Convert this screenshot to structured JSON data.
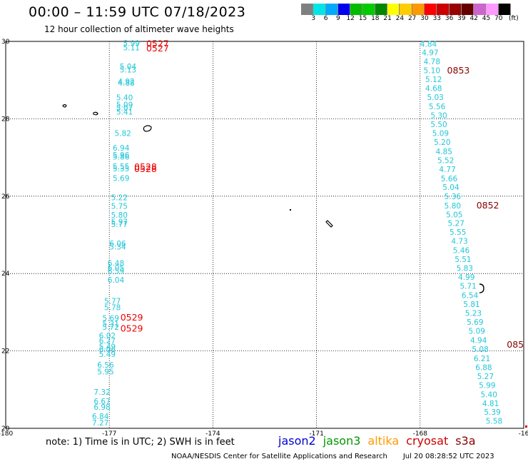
{
  "header": {
    "title": "00:00 – 11:59 UTC 07/18/2023",
    "subtitle": "12 hour collection of altimeter wave heights"
  },
  "colorbar": {
    "unit": "(ft)",
    "colors": [
      "#808080",
      "#00e6e6",
      "#00aaff",
      "#0000ee",
      "#00bb00",
      "#00cc00",
      "#008800",
      "#ffff00",
      "#ffcc00",
      "#ff9900",
      "#ff0000",
      "#cc0000",
      "#990000",
      "#660000",
      "#cc66cc",
      "#ff99ff",
      "#000000"
    ],
    "labels": [
      "3",
      "6",
      "9",
      "12",
      "15",
      "18",
      "21",
      "24",
      "27",
      "30",
      "33",
      "36",
      "39",
      "42",
      "45",
      "70"
    ]
  },
  "map": {
    "lon_range": [
      -180,
      -165
    ],
    "lat_range": [
      20,
      30
    ],
    "lon_ticks": [
      "-180",
      "-177",
      "-174",
      "-171",
      "-168",
      "-16"
    ],
    "lat_ticks": [
      "30",
      "28",
      "26",
      "24",
      "22",
      "20"
    ],
    "grid": true
  },
  "tracks": {
    "west": {
      "color": "#22c7d8",
      "values": [
        {
          "lat": 29.95,
          "lon": -176.6,
          "v": "5.99"
        },
        {
          "lat": 29.84,
          "lon": -176.6,
          "v": "5.11"
        },
        {
          "lat": 29.35,
          "lon": -176.7,
          "v": "5.04"
        },
        {
          "lat": 29.27,
          "lon": -176.7,
          "v": "5.13"
        },
        {
          "lat": 28.97,
          "lon": -176.75,
          "v": "4.92"
        },
        {
          "lat": 28.93,
          "lon": -176.75,
          "v": "4.88"
        },
        {
          "lat": 28.55,
          "lon": -176.8,
          "v": "5.40"
        },
        {
          "lat": 28.37,
          "lon": -176.8,
          "v": "5.09"
        },
        {
          "lat": 28.28,
          "lon": -176.8,
          "v": "5.07"
        },
        {
          "lat": 28.18,
          "lon": -176.8,
          "v": "5.41"
        },
        {
          "lat": 27.63,
          "lon": -176.85,
          "v": "5.82"
        },
        {
          "lat": 27.25,
          "lon": -176.9,
          "v": "6.94"
        },
        {
          "lat": 27.07,
          "lon": -176.9,
          "v": "5.96"
        },
        {
          "lat": 27.02,
          "lon": -176.9,
          "v": "5.86"
        },
        {
          "lat": 26.77,
          "lon": -176.9,
          "v": "5.55"
        },
        {
          "lat": 26.72,
          "lon": -176.9,
          "v": "5.35"
        },
        {
          "lat": 26.47,
          "lon": -176.9,
          "v": "5.69"
        },
        {
          "lat": 25.97,
          "lon": -176.95,
          "v": "5.22"
        },
        {
          "lat": 25.75,
          "lon": -176.95,
          "v": "5.75"
        },
        {
          "lat": 25.52,
          "lon": -176.95,
          "v": "5.80"
        },
        {
          "lat": 25.34,
          "lon": -176.95,
          "v": "5.97"
        },
        {
          "lat": 25.28,
          "lon": -176.95,
          "v": "5.77"
        },
        {
          "lat": 24.78,
          "lon": -177.0,
          "v": "6.06"
        },
        {
          "lat": 24.7,
          "lon": -177.0,
          "v": "5.34"
        },
        {
          "lat": 24.27,
          "lon": -177.05,
          "v": "6.48"
        },
        {
          "lat": 24.15,
          "lon": -177.05,
          "v": "6.05"
        },
        {
          "lat": 24.07,
          "lon": -177.05,
          "v": "6.59"
        },
        {
          "lat": 23.84,
          "lon": -177.05,
          "v": "6.04"
        },
        {
          "lat": 23.29,
          "lon": -177.15,
          "v": "5.77"
        },
        {
          "lat": 23.13,
          "lon": -177.15,
          "v": "5.78"
        },
        {
          "lat": 22.85,
          "lon": -177.2,
          "v": "5.69"
        },
        {
          "lat": 22.7,
          "lon": -177.2,
          "v": "5.31"
        },
        {
          "lat": 22.62,
          "lon": -177.2,
          "v": "5.72"
        },
        {
          "lat": 22.4,
          "lon": -177.3,
          "v": "6.02"
        },
        {
          "lat": 22.27,
          "lon": -177.3,
          "v": "6.27"
        },
        {
          "lat": 22.11,
          "lon": -177.3,
          "v": "5.49"
        },
        {
          "lat": 22.04,
          "lon": -177.3,
          "v": "6.06"
        },
        {
          "lat": 21.92,
          "lon": -177.3,
          "v": "5.49"
        },
        {
          "lat": 21.64,
          "lon": -177.35,
          "v": "6.56"
        },
        {
          "lat": 21.47,
          "lon": -177.35,
          "v": "5.95"
        },
        {
          "lat": 20.94,
          "lon": -177.45,
          "v": "7.32"
        },
        {
          "lat": 20.7,
          "lon": -177.45,
          "v": "6.67"
        },
        {
          "lat": 20.55,
          "lon": -177.45,
          "v": "6.98"
        },
        {
          "lat": 20.31,
          "lon": -177.5,
          "v": "6.84"
        },
        {
          "lat": 20.15,
          "lon": -177.5,
          "v": "7.27"
        }
      ]
    },
    "east": {
      "color": "#22c7d8",
      "values": [
        {
          "lat": 29.94,
          "lon": -168.0,
          "v": "4.84"
        },
        {
          "lat": 29.71,
          "lon": -167.95,
          "v": "4.97"
        },
        {
          "lat": 29.48,
          "lon": -167.9,
          "v": "4.78"
        },
        {
          "lat": 29.25,
          "lon": -167.9,
          "v": "5.10"
        },
        {
          "lat": 29.02,
          "lon": -167.85,
          "v": "5.12"
        },
        {
          "lat": 28.79,
          "lon": -167.85,
          "v": "4.68"
        },
        {
          "lat": 28.56,
          "lon": -167.8,
          "v": "5.03"
        },
        {
          "lat": 28.32,
          "lon": -167.75,
          "v": "5.56"
        },
        {
          "lat": 28.09,
          "lon": -167.7,
          "v": "5.30"
        },
        {
          "lat": 27.86,
          "lon": -167.7,
          "v": "5.50"
        },
        {
          "lat": 27.63,
          "lon": -167.65,
          "v": "5.09"
        },
        {
          "lat": 27.4,
          "lon": -167.6,
          "v": "5.20"
        },
        {
          "lat": 27.16,
          "lon": -167.55,
          "v": "4.85"
        },
        {
          "lat": 26.93,
          "lon": -167.5,
          "v": "5.52"
        },
        {
          "lat": 26.7,
          "lon": -167.45,
          "v": "4.77"
        },
        {
          "lat": 26.46,
          "lon": -167.4,
          "v": "5.66"
        },
        {
          "lat": 26.24,
          "lon": -167.35,
          "v": "5.04"
        },
        {
          "lat": 26.0,
          "lon": -167.3,
          "v": "5.36"
        },
        {
          "lat": 25.76,
          "lon": -167.3,
          "v": "5.80"
        },
        {
          "lat": 25.53,
          "lon": -167.25,
          "v": "5.05"
        },
        {
          "lat": 25.3,
          "lon": -167.2,
          "v": "5.27"
        },
        {
          "lat": 25.07,
          "lon": -167.15,
          "v": "5.55"
        },
        {
          "lat": 24.84,
          "lon": -167.1,
          "v": "4.73"
        },
        {
          "lat": 24.6,
          "lon": -167.05,
          "v": "5.46"
        },
        {
          "lat": 24.37,
          "lon": -167.0,
          "v": "5.51"
        },
        {
          "lat": 24.14,
          "lon": -166.95,
          "v": "5.83"
        },
        {
          "lat": 23.91,
          "lon": -166.9,
          "v": "4.99"
        },
        {
          "lat": 23.68,
          "lon": -166.85,
          "v": "5.71"
        },
        {
          "lat": 23.44,
          "lon": -166.8,
          "v": "6.54"
        },
        {
          "lat": 23.21,
          "lon": -166.75,
          "v": "5.81"
        },
        {
          "lat": 22.98,
          "lon": -166.7,
          "v": "5.23"
        },
        {
          "lat": 22.75,
          "lon": -166.65,
          "v": "5.69"
        },
        {
          "lat": 22.52,
          "lon": -166.6,
          "v": "5.09"
        },
        {
          "lat": 22.28,
          "lon": -166.55,
          "v": "4.94"
        },
        {
          "lat": 22.05,
          "lon": -166.5,
          "v": "5.08"
        },
        {
          "lat": 21.81,
          "lon": -166.45,
          "v": "6.21"
        },
        {
          "lat": 21.58,
          "lon": -166.4,
          "v": "6.88"
        },
        {
          "lat": 21.35,
          "lon": -166.35,
          "v": "5.27"
        },
        {
          "lat": 21.12,
          "lon": -166.3,
          "v": "5.99"
        },
        {
          "lat": 20.88,
          "lon": -166.25,
          "v": "5.40"
        },
        {
          "lat": 20.65,
          "lon": -166.2,
          "v": "4.81"
        },
        {
          "lat": 20.42,
          "lon": -166.15,
          "v": "5.39"
        },
        {
          "lat": 20.19,
          "lon": -166.1,
          "v": "5.58"
        }
      ]
    }
  },
  "time_labels": [
    {
      "text": "0527",
      "lat": 29.94,
      "lon": -175.93,
      "color": "#ee0000"
    },
    {
      "text": "0527",
      "lat": 29.82,
      "lon": -175.93,
      "color": "#ee0000"
    },
    {
      "text": "0528",
      "lat": 26.75,
      "lon": -176.28,
      "color": "#ee0000"
    },
    {
      "text": "0528",
      "lat": 26.7,
      "lon": -176.28,
      "color": "#ee0000"
    },
    {
      "text": "0529",
      "lat": 22.86,
      "lon": -176.68,
      "color": "#ee0000"
    },
    {
      "text": "0529",
      "lat": 22.57,
      "lon": -176.68,
      "color": "#ee0000"
    },
    {
      "text": "0853",
      "lat": 29.24,
      "lon": -167.22,
      "color": "#880000"
    },
    {
      "text": "0852",
      "lat": 25.76,
      "lon": -166.37,
      "color": "#880000"
    },
    {
      "text": "085",
      "lat": 22.16,
      "lon": -165.49,
      "color": "#880000"
    }
  ],
  "footer": {
    "note": "note:  1) Time is in UTC;  2) SWH is in feet",
    "legend": [
      {
        "name": "jason2",
        "color": "#0000cc"
      },
      {
        "name": "jason3",
        "color": "#009900"
      },
      {
        "name": "altika",
        "color": "#ff9900"
      },
      {
        "name": "cryosat",
        "color": "#cc0000"
      },
      {
        "name": "s3a",
        "color": "#880000"
      }
    ],
    "credit": "NOAA/NESDIS Center for Satellite Applications and Research",
    "date": "Jul 20 08:28:52 UTC 2023"
  }
}
